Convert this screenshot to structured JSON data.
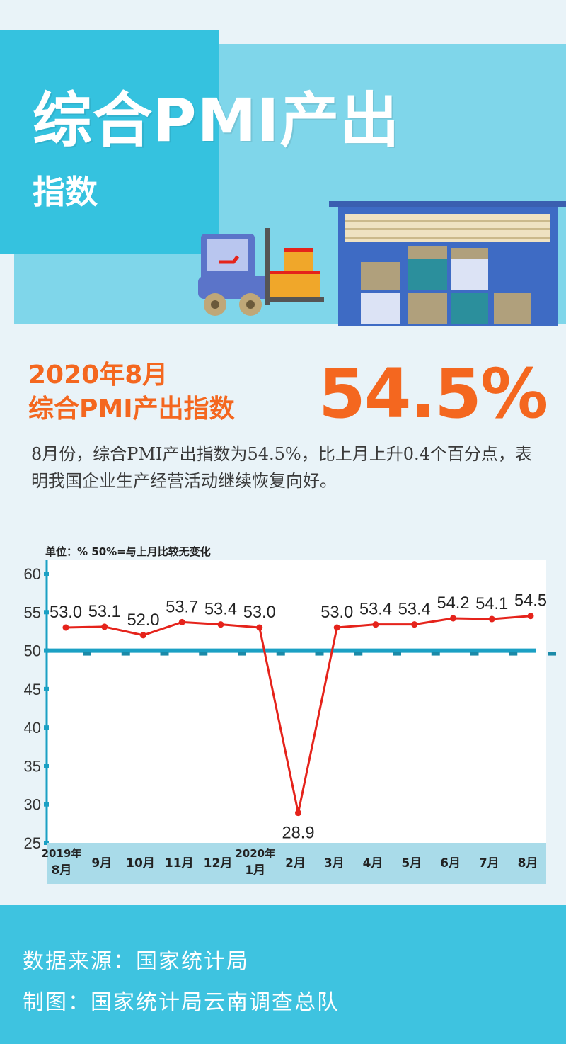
{
  "hero": {
    "title": "综合PMI产出",
    "subtitle": "指数"
  },
  "headline": {
    "line1": "2020年8月",
    "line2": "综合PMI产出指数",
    "value": "54.5%"
  },
  "description": "8月份，综合PMI产出指数为54.5%，比上月上升0.4个百分点，表明我国企业生产经营活动继续恢复向好。",
  "unit_note": "单位：% 50%=与上月比较无变化",
  "chart_data": {
    "type": "line",
    "title": "",
    "xlabel": "",
    "ylabel": "",
    "ylim": [
      25,
      60
    ],
    "yticks": [
      25,
      30,
      35,
      40,
      45,
      50,
      55,
      60
    ],
    "reference_line": 50,
    "categories": [
      [
        "2019年",
        "8月"
      ],
      [
        "9月"
      ],
      [
        "10月"
      ],
      [
        "11月"
      ],
      [
        "12月"
      ],
      [
        "2020年",
        "1月"
      ],
      [
        "2月"
      ],
      [
        "3月"
      ],
      [
        "4月"
      ],
      [
        "5月"
      ],
      [
        "6月"
      ],
      [
        "7月"
      ],
      [
        "8月"
      ]
    ],
    "series": [
      {
        "values": [
          53.0,
          53.1,
          52.0,
          53.7,
          53.4,
          53.0,
          28.9,
          53.0,
          53.4,
          53.4,
          54.2,
          54.1,
          54.5
        ],
        "labels": [
          "53.0",
          "53.1",
          "52.0",
          "53.7",
          "53.4",
          "53.0",
          "28.9",
          "53.0",
          "53.4",
          "53.4",
          "54.2",
          "54.1",
          "54.5"
        ],
        "color": "#e5231b"
      }
    ],
    "reference_color": "#1ba0c4",
    "grid": false
  },
  "footer": {
    "source": "数据来源：国家统计局",
    "credit": "制图：国家统计局云南调查总队"
  },
  "colors": {
    "accent": "#f4671f",
    "hero_light": "#7fd6ea",
    "hero_dark": "#35c2df",
    "footer": "#3ec3e0"
  }
}
